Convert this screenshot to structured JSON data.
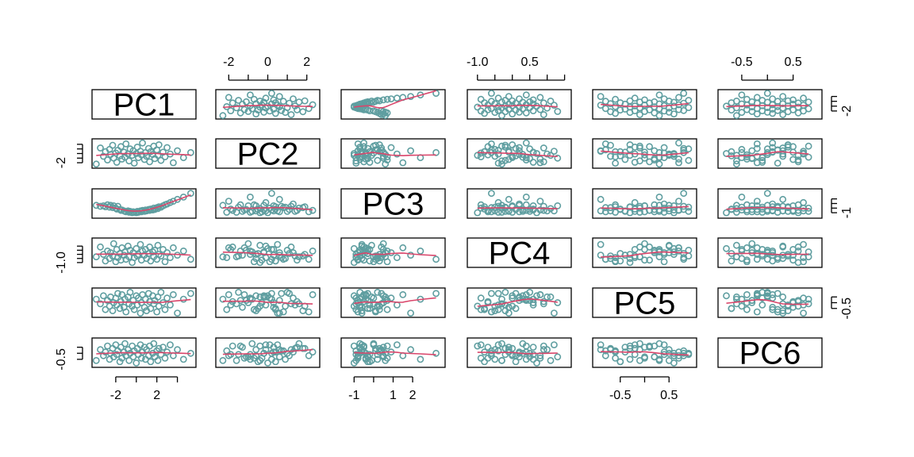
{
  "chart_data": {
    "type": "scatter",
    "matrix": "pairs",
    "variables": [
      "PC1",
      "PC2",
      "PC3",
      "PC4",
      "PC5",
      "PC6"
    ],
    "point_color": "#5f9ea0",
    "smooth_color": "#d9466b",
    "point_shape": "open-circle",
    "smoother": "lowess",
    "grid": false,
    "ranges": {
      "PC1": [
        -4,
        5.5
      ],
      "PC2": [
        -2.5,
        2.5
      ],
      "PC3": [
        -1.5,
        3.5
      ],
      "PC4": [
        -1.2,
        1.6
      ],
      "PC5": [
        -1.0,
        1.0
      ],
      "PC6": [
        -0.9,
        1.0
      ]
    },
    "axes": {
      "top": [
        {
          "var": "PC2",
          "ticks": [
            -2,
            -1,
            0,
            1,
            2
          ],
          "labels": [
            "-2",
            "",
            "0",
            "",
            "2"
          ]
        },
        {
          "var": "PC4",
          "ticks": [
            -1.0,
            -0.5,
            0,
            0.5,
            1.0,
            1.5
          ],
          "labels": [
            "-1.0",
            "",
            "",
            "0.5",
            "",
            ""
          ]
        },
        {
          "var": "PC6",
          "ticks": [
            -0.5,
            0,
            0.5
          ],
          "labels": [
            "-0.5",
            "",
            "0.5"
          ]
        }
      ],
      "bottom": [
        {
          "var": "PC1",
          "ticks": [
            -2,
            0,
            2,
            4
          ],
          "labels": [
            "-2",
            "",
            "2",
            ""
          ]
        },
        {
          "var": "PC3",
          "ticks": [
            -1,
            0,
            1,
            2
          ],
          "labels": [
            "-1",
            "",
            "1",
            "2"
          ]
        },
        {
          "var": "PC5",
          "ticks": [
            -0.5,
            0,
            0.5
          ],
          "labels": [
            "-0.5",
            "",
            "0.5"
          ]
        }
      ],
      "left": [
        {
          "var": "PC2",
          "ticks": [
            -2,
            -1,
            0,
            1,
            2
          ],
          "labels": [
            "-2",
            "",
            "",
            "",
            ""
          ]
        },
        {
          "var": "PC4",
          "ticks": [
            -1.0,
            -0.5,
            0,
            0.5,
            1.0
          ],
          "labels": [
            "-1.0",
            "",
            "",
            "",
            ""
          ]
        },
        {
          "var": "PC6",
          "ticks": [
            -0.5,
            0,
            0.5
          ],
          "labels": [
            "-0.5",
            "",
            ""
          ]
        }
      ],
      "right": [
        {
          "var": "PC1",
          "ticks": [
            -2,
            0,
            2,
            4
          ],
          "labels": [
            "-2",
            "",
            "",
            ""
          ]
        },
        {
          "var": "PC3",
          "ticks": [
            -1,
            0,
            1,
            2
          ],
          "labels": [
            "-1",
            "",
            "",
            ""
          ]
        },
        {
          "var": "PC5",
          "ticks": [
            -0.5,
            0,
            0.5
          ],
          "labels": [
            "-0.5",
            "",
            ""
          ]
        }
      ]
    },
    "observations": [
      {
        "PC1": -3.9,
        "PC2": -2.3,
        "PC3": 0.6,
        "PC4": -0.3,
        "PC5": 0.3,
        "PC6": -0.6
      },
      {
        "PC1": -3.5,
        "PC2": 1.2,
        "PC3": 0.4,
        "PC4": 0.9,
        "PC5": -0.1,
        "PC6": 0.3
      },
      {
        "PC1": -3.2,
        "PC2": -0.6,
        "PC3": 0.5,
        "PC4": 0.0,
        "PC5": 0.6,
        "PC6": -0.2
      },
      {
        "PC1": -3.0,
        "PC2": 0.4,
        "PC3": 0.3,
        "PC4": -0.8,
        "PC5": -0.6,
        "PC6": 0.1
      },
      {
        "PC1": -2.8,
        "PC2": -1.4,
        "PC3": 0.7,
        "PC4": 0.4,
        "PC5": 0.2,
        "PC6": 0.6
      },
      {
        "PC1": -2.6,
        "PC2": 0.9,
        "PC3": 0.2,
        "PC4": -0.5,
        "PC5": -0.3,
        "PC6": -0.5
      },
      {
        "PC1": -2.5,
        "PC2": -0.2,
        "PC3": 0.6,
        "PC4": 0.2,
        "PC5": 0.5,
        "PC6": 0.0
      },
      {
        "PC1": -2.3,
        "PC2": 1.8,
        "PC3": 0.1,
        "PC4": -0.2,
        "PC5": -0.7,
        "PC6": 0.4
      },
      {
        "PC1": -2.2,
        "PC2": -1.0,
        "PC3": 0.5,
        "PC4": 1.3,
        "PC5": 0.0,
        "PC6": -0.3
      },
      {
        "PC1": -2.0,
        "PC2": 0.1,
        "PC3": 0.0,
        "PC4": -0.9,
        "PC5": 0.4,
        "PC6": 0.7
      },
      {
        "PC1": -1.9,
        "PC2": -1.9,
        "PC3": -0.2,
        "PC4": 0.6,
        "PC5": -0.2,
        "PC6": -0.1
      },
      {
        "PC1": -1.8,
        "PC2": 0.7,
        "PC3": 0.4,
        "PC4": -0.4,
        "PC5": 0.8,
        "PC6": 0.2
      },
      {
        "PC1": -1.6,
        "PC2": -0.5,
        "PC3": -0.3,
        "PC4": 0.1,
        "PC5": -0.5,
        "PC6": -0.7
      },
      {
        "PC1": -1.5,
        "PC2": 1.5,
        "PC3": -0.5,
        "PC4": -0.7,
        "PC5": 0.1,
        "PC6": 0.5
      },
      {
        "PC1": -1.4,
        "PC2": -1.2,
        "PC3": -0.4,
        "PC4": 0.8,
        "PC5": 0.7,
        "PC6": -0.4
      },
      {
        "PC1": -1.2,
        "PC2": 0.3,
        "PC3": -0.6,
        "PC4": -0.1,
        "PC5": -0.4,
        "PC6": 0.1
      },
      {
        "PC1": -1.1,
        "PC2": -0.8,
        "PC3": -0.7,
        "PC4": 0.3,
        "PC5": 0.3,
        "PC6": 0.8
      },
      {
        "PC1": -1.0,
        "PC2": 2.1,
        "PC3": -0.8,
        "PC4": -0.6,
        "PC5": -0.8,
        "PC6": -0.2
      },
      {
        "PC1": -0.8,
        "PC2": -0.1,
        "PC3": -0.6,
        "PC4": 1.0,
        "PC5": 0.5,
        "PC6": 0.3
      },
      {
        "PC1": -0.7,
        "PC2": -1.6,
        "PC3": -0.9,
        "PC4": -0.3,
        "PC5": -0.1,
        "PC6": -0.6
      },
      {
        "PC1": -0.6,
        "PC2": 1.0,
        "PC3": -0.7,
        "PC4": 0.5,
        "PC5": 0.9,
        "PC6": 0.0
      },
      {
        "PC1": -0.4,
        "PC2": -0.4,
        "PC3": -1.0,
        "PC4": -1.0,
        "PC5": -0.3,
        "PC6": 0.6
      },
      {
        "PC1": -0.3,
        "PC2": 0.6,
        "PC3": -0.8,
        "PC4": 0.2,
        "PC5": 0.2,
        "PC6": -0.3
      },
      {
        "PC1": -0.2,
        "PC2": -2.1,
        "PC3": -0.9,
        "PC4": -0.4,
        "PC5": -0.6,
        "PC6": 0.2
      },
      {
        "PC1": 0.0,
        "PC2": 0.0,
        "PC3": -1.0,
        "PC4": 0.7,
        "PC5": 0.6,
        "PC6": -0.8
      },
      {
        "PC1": 0.1,
        "PC2": 1.4,
        "PC3": -0.7,
        "PC4": -0.2,
        "PC5": -0.2,
        "PC6": 0.4
      },
      {
        "PC1": 0.2,
        "PC2": -0.9,
        "PC3": -0.9,
        "PC4": 0.0,
        "PC5": 0.4,
        "PC6": -0.1
      },
      {
        "PC1": 0.4,
        "PC2": 0.5,
        "PC3": -0.6,
        "PC4": 1.2,
        "PC5": -0.9,
        "PC6": 0.7
      },
      {
        "PC1": 0.5,
        "PC2": -0.3,
        "PC3": -0.8,
        "PC4": -0.7,
        "PC5": 0.0,
        "PC6": -0.4
      },
      {
        "PC1": 0.6,
        "PC2": 2.3,
        "PC3": -0.5,
        "PC4": 0.4,
        "PC5": 0.7,
        "PC6": 0.1
      },
      {
        "PC1": 0.8,
        "PC2": -1.3,
        "PC3": -0.7,
        "PC4": -0.1,
        "PC5": -0.4,
        "PC6": 0.5
      },
      {
        "PC1": 0.9,
        "PC2": 0.2,
        "PC3": -0.4,
        "PC4": 0.6,
        "PC5": 0.3,
        "PC6": -0.5
      },
      {
        "PC1": 1.0,
        "PC2": -0.6,
        "PC3": -0.6,
        "PC4": -0.5,
        "PC5": -0.7,
        "PC6": 0.3
      },
      {
        "PC1": 1.2,
        "PC2": 1.1,
        "PC3": -0.3,
        "PC4": 0.1,
        "PC5": 0.8,
        "PC6": -0.2
      },
      {
        "PC1": 1.3,
        "PC2": -1.8,
        "PC3": -0.5,
        "PC4": 0.9,
        "PC5": 0.1,
        "PC6": 0.6
      },
      {
        "PC1": 1.4,
        "PC2": 0.4,
        "PC3": -0.2,
        "PC4": -0.8,
        "PC5": -0.5,
        "PC6": -0.7
      },
      {
        "PC1": 1.6,
        "PC2": -0.2,
        "PC3": -0.4,
        "PC4": 0.3,
        "PC5": 0.6,
        "PC6": 0.0
      },
      {
        "PC1": 1.7,
        "PC2": 1.6,
        "PC3": 0.0,
        "PC4": -0.3,
        "PC5": -0.1,
        "PC6": 0.8
      },
      {
        "PC1": 1.8,
        "PC2": -1.1,
        "PC3": -0.3,
        "PC4": 0.5,
        "PC5": 0.2,
        "PC6": -0.3
      },
      {
        "PC1": 2.0,
        "PC2": 0.8,
        "PC3": 0.1,
        "PC4": -0.6,
        "PC5": -0.8,
        "PC6": 0.2
      },
      {
        "PC1": 2.1,
        "PC2": -0.4,
        "PC3": -0.1,
        "PC4": 1.1,
        "PC5": 0.5,
        "PC6": -0.6
      },
      {
        "PC1": 2.2,
        "PC2": 1.9,
        "PC3": 0.3,
        "PC4": 0.0,
        "PC5": -0.3,
        "PC6": 0.4
      },
      {
        "PC1": 2.4,
        "PC2": -1.5,
        "PC3": 0.2,
        "PC4": -0.2,
        "PC5": 0.9,
        "PC6": -0.1
      },
      {
        "PC1": 2.6,
        "PC2": 0.3,
        "PC3": 0.5,
        "PC4": 0.6,
        "PC5": 0.0,
        "PC6": 0.5
      },
      {
        "PC1": 2.8,
        "PC2": -0.7,
        "PC3": 0.7,
        "PC4": -0.9,
        "PC5": -0.6,
        "PC6": -0.4
      },
      {
        "PC1": 3.0,
        "PC2": 1.3,
        "PC3": 0.9,
        "PC4": 0.2,
        "PC5": 0.4,
        "PC6": 0.1
      },
      {
        "PC1": 3.3,
        "PC2": -0.1,
        "PC3": 1.2,
        "PC4": -0.4,
        "PC5": -0.2,
        "PC6": 0.7
      },
      {
        "PC1": 3.6,
        "PC2": -2.0,
        "PC3": 1.5,
        "PC4": 0.8,
        "PC5": 0.7,
        "PC6": -0.2
      },
      {
        "PC1": 4.0,
        "PC2": 0.6,
        "PC3": 1.9,
        "PC4": -0.1,
        "PC5": -0.9,
        "PC6": 0.3
      },
      {
        "PC1": 4.6,
        "PC2": -0.9,
        "PC3": 2.4,
        "PC4": 0.4,
        "PC5": 0.3,
        "PC6": -0.5
      },
      {
        "PC1": 5.3,
        "PC2": 0.2,
        "PC3": 3.2,
        "PC4": -0.6,
        "PC5": 0.8,
        "PC6": 0.0
      }
    ]
  }
}
